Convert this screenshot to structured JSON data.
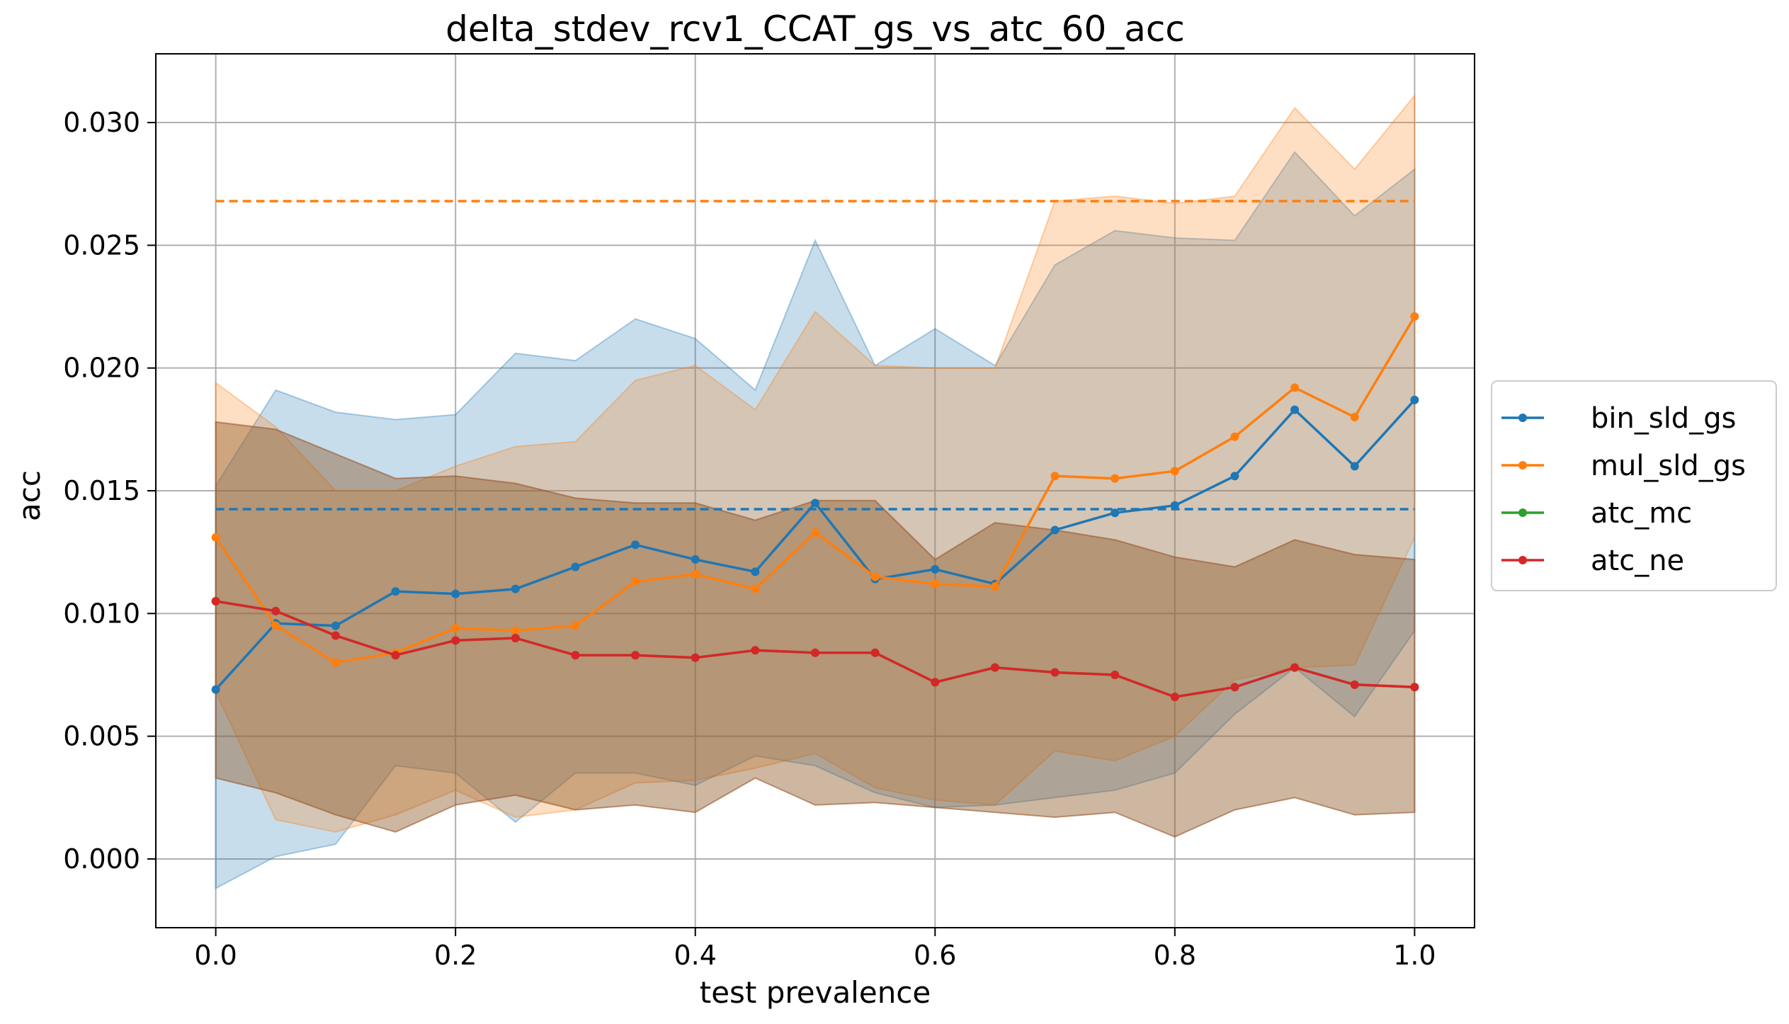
{
  "chart_data": {
    "type": "line",
    "title": "delta_stdev_rcv1_CCAT_gs_vs_atc_60_acc",
    "xlabel": "test prevalence",
    "ylabel": "acc",
    "xlim": [
      -0.05,
      1.05
    ],
    "ylim": [
      -0.0028,
      0.0328
    ],
    "grid": true,
    "legend_position": "outside-right",
    "x": [
      0.0,
      0.05,
      0.1,
      0.15,
      0.2,
      0.25,
      0.3,
      0.35,
      0.4,
      0.45,
      0.5,
      0.55,
      0.6,
      0.65,
      0.7,
      0.75,
      0.8,
      0.85,
      0.9,
      0.95,
      1.0
    ],
    "x_ticks": [
      0.0,
      0.2,
      0.4,
      0.6,
      0.8,
      1.0
    ],
    "x_tick_labels": [
      "0.0",
      "0.2",
      "0.4",
      "0.6",
      "0.8",
      "1.0"
    ],
    "y_ticks": [
      0.0,
      0.005,
      0.01,
      0.015,
      0.02,
      0.025,
      0.03
    ],
    "y_tick_labels": [
      "0.000",
      "0.005",
      "0.010",
      "0.015",
      "0.020",
      "0.025",
      "0.030"
    ],
    "series": [
      {
        "name": "bin_sld_gs",
        "color": "#1f77b4",
        "values": [
          0.0069,
          0.0096,
          0.0095,
          0.0109,
          0.0108,
          0.011,
          0.0119,
          0.0128,
          0.0122,
          0.0117,
          0.0145,
          0.0114,
          0.0118,
          0.0112,
          0.0134,
          0.0141,
          0.0144,
          0.0156,
          0.0183,
          0.016,
          0.0187
        ],
        "band_upper": [
          0.0152,
          0.0191,
          0.0182,
          0.0179,
          0.0181,
          0.0206,
          0.0203,
          0.022,
          0.0212,
          0.0191,
          0.0252,
          0.0201,
          0.0216,
          0.0201,
          0.0242,
          0.0256,
          0.0253,
          0.0252,
          0.0288,
          0.0262,
          0.0281
        ],
        "band_lower": [
          -0.0012,
          0.0001,
          0.0006,
          0.0038,
          0.0035,
          0.0015,
          0.0035,
          0.0035,
          0.003,
          0.0042,
          0.0038,
          0.0027,
          0.0021,
          0.0022,
          0.0025,
          0.0028,
          0.0035,
          0.0059,
          0.0078,
          0.0058,
          0.0093
        ],
        "reference": 0.01425
      },
      {
        "name": "mul_sld_gs",
        "color": "#ff7f0e",
        "values": [
          0.0131,
          0.0095,
          0.008,
          0.0084,
          0.0094,
          0.0093,
          0.0095,
          0.0113,
          0.0116,
          0.011,
          0.0133,
          0.0115,
          0.0112,
          0.0111,
          0.0156,
          0.0155,
          0.0158,
          0.0172,
          0.0192,
          0.018,
          0.0221
        ],
        "band_upper": [
          0.0194,
          0.0176,
          0.015,
          0.015,
          0.016,
          0.0168,
          0.017,
          0.0195,
          0.0201,
          0.0183,
          0.0223,
          0.0201,
          0.02,
          0.02,
          0.0268,
          0.027,
          0.0267,
          0.027,
          0.0306,
          0.0281,
          0.0311
        ],
        "band_lower": [
          0.0068,
          0.0016,
          0.0011,
          0.0018,
          0.0028,
          0.0017,
          0.002,
          0.0031,
          0.0032,
          0.0037,
          0.0043,
          0.0029,
          0.0024,
          0.0022,
          0.0044,
          0.004,
          0.005,
          0.0073,
          0.0078,
          0.0079,
          0.0131
        ],
        "reference": 0.0268
      },
      {
        "name": "atc_mc",
        "color": "#2ca02c",
        "values": [
          0.0105,
          0.0101,
          0.0091,
          0.0083,
          0.0089,
          0.009,
          0.0083,
          0.0083,
          0.0082,
          0.0085,
          0.0084,
          0.0084,
          0.0072,
          0.0078,
          0.0076,
          0.0075,
          0.0066,
          0.007,
          0.0078,
          0.0071,
          0.007
        ],
        "band_upper": [
          0.0178,
          0.0175,
          0.0165,
          0.0155,
          0.0156,
          0.0153,
          0.0147,
          0.0145,
          0.0145,
          0.0138,
          0.0146,
          0.0146,
          0.0122,
          0.0137,
          0.0134,
          0.013,
          0.0123,
          0.0119,
          0.013,
          0.0124,
          0.0122
        ],
        "band_lower": [
          0.0033,
          0.0027,
          0.0018,
          0.0011,
          0.0022,
          0.0026,
          0.002,
          0.0022,
          0.0019,
          0.0033,
          0.0022,
          0.0023,
          0.0021,
          0.0019,
          0.0017,
          0.0019,
          0.0009,
          0.002,
          0.0025,
          0.0018,
          0.0019
        ]
      },
      {
        "name": "atc_ne",
        "color": "#d62728",
        "values": [
          0.0105,
          0.0101,
          0.0091,
          0.0083,
          0.0089,
          0.009,
          0.0083,
          0.0083,
          0.0082,
          0.0085,
          0.0084,
          0.0084,
          0.0072,
          0.0078,
          0.0076,
          0.0075,
          0.0066,
          0.007,
          0.0078,
          0.0071,
          0.007
        ],
        "band_upper": [
          0.0178,
          0.0175,
          0.0165,
          0.0155,
          0.0156,
          0.0153,
          0.0147,
          0.0145,
          0.0145,
          0.0138,
          0.0146,
          0.0146,
          0.0122,
          0.0137,
          0.0134,
          0.013,
          0.0123,
          0.0119,
          0.013,
          0.0124,
          0.0122
        ],
        "band_lower": [
          0.0033,
          0.0027,
          0.0018,
          0.0011,
          0.0022,
          0.0026,
          0.002,
          0.0022,
          0.0019,
          0.0033,
          0.0022,
          0.0023,
          0.0021,
          0.0019,
          0.0017,
          0.0019,
          0.0009,
          0.002,
          0.0025,
          0.0018,
          0.0019
        ]
      }
    ]
  }
}
